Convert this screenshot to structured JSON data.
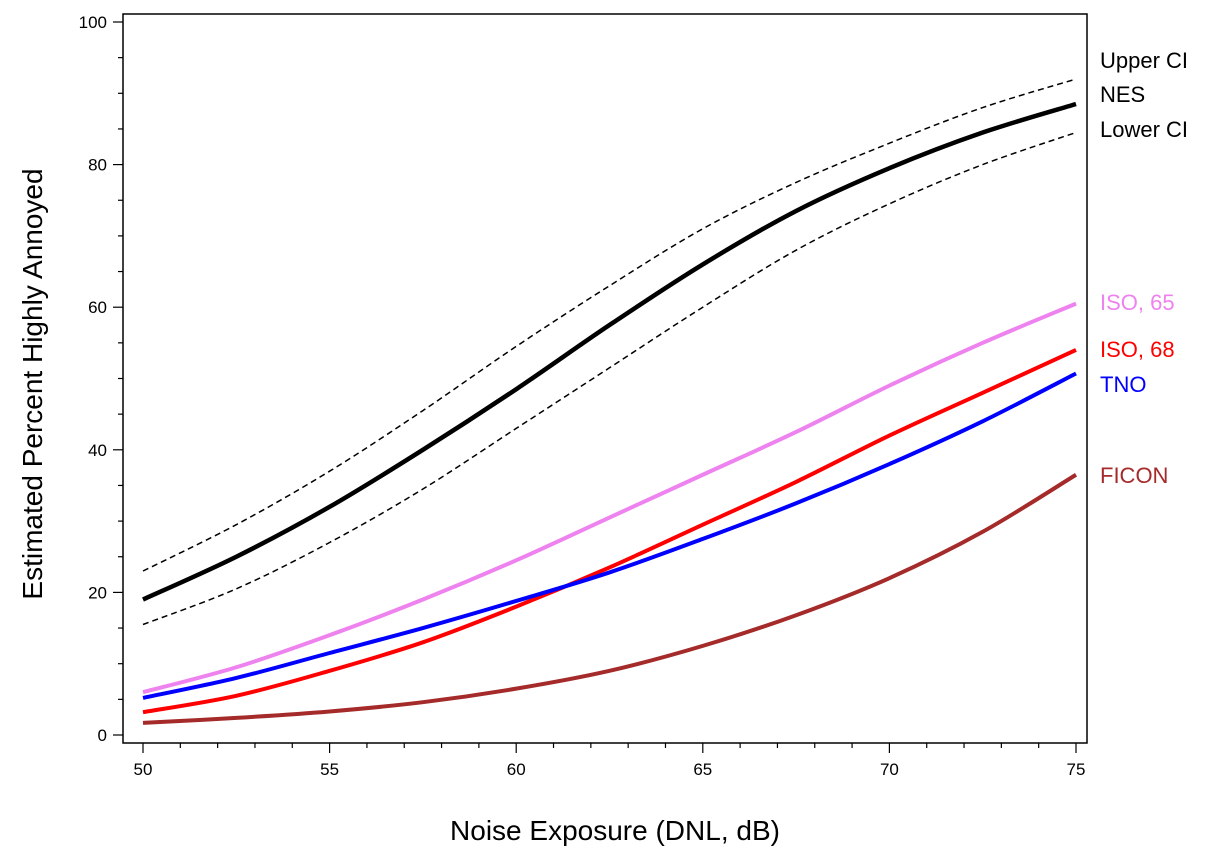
{
  "chart_data": {
    "type": "line",
    "title": "",
    "xlabel": "Noise Exposure (DNL, dB)",
    "ylabel": "Estimated Percent Highly Annoyed",
    "xlim": [
      50,
      75
    ],
    "ylim": [
      0,
      100
    ],
    "xticks": [
      50,
      55,
      60,
      65,
      70,
      75
    ],
    "yticks": [
      0,
      20,
      40,
      60,
      80,
      100
    ],
    "grid": false,
    "legend": "right-end labels",
    "x": [
      50,
      52.5,
      55,
      57.5,
      60,
      62.5,
      65,
      67.5,
      70,
      72.5,
      75
    ],
    "series": [
      {
        "name": "Upper CI",
        "color": "#000000",
        "style": "dashed",
        "values": [
          23.0,
          29.5,
          37.0,
          45.5,
          54.5,
          63.0,
          71.0,
          77.5,
          83.0,
          88.0,
          92.0
        ]
      },
      {
        "name": "NES",
        "color": "#000000",
        "style": "solid-thick",
        "values": [
          19.0,
          25.0,
          32.0,
          40.0,
          48.5,
          57.5,
          66.0,
          73.5,
          79.5,
          84.5,
          88.5
        ]
      },
      {
        "name": "Lower CI",
        "color": "#000000",
        "style": "dashed",
        "values": [
          15.5,
          20.5,
          27.0,
          34.5,
          43.0,
          51.5,
          60.0,
          68.0,
          74.5,
          80.0,
          84.5
        ]
      },
      {
        "name": "ISO, 65",
        "color": "#ee82ee",
        "style": "solid",
        "values": [
          6.0,
          9.5,
          14.0,
          19.0,
          24.5,
          30.5,
          36.5,
          42.5,
          49.0,
          55.0,
          60.5
        ]
      },
      {
        "name": "ISO, 68",
        "color": "#ff0000",
        "style": "solid",
        "values": [
          3.2,
          5.5,
          9.0,
          13.0,
          18.0,
          23.5,
          29.5,
          35.5,
          42.0,
          48.0,
          54.0
        ]
      },
      {
        "name": "TNO",
        "color": "#0000ff",
        "style": "solid",
        "values": [
          5.2,
          8.0,
          11.5,
          15.0,
          18.8,
          22.8,
          27.5,
          32.5,
          38.0,
          44.0,
          50.7
        ]
      },
      {
        "name": "FICON",
        "color": "#a52a2a",
        "style": "solid",
        "values": [
          1.7,
          2.4,
          3.3,
          4.6,
          6.5,
          9.0,
          12.5,
          16.8,
          22.0,
          28.5,
          36.5
        ]
      }
    ]
  }
}
